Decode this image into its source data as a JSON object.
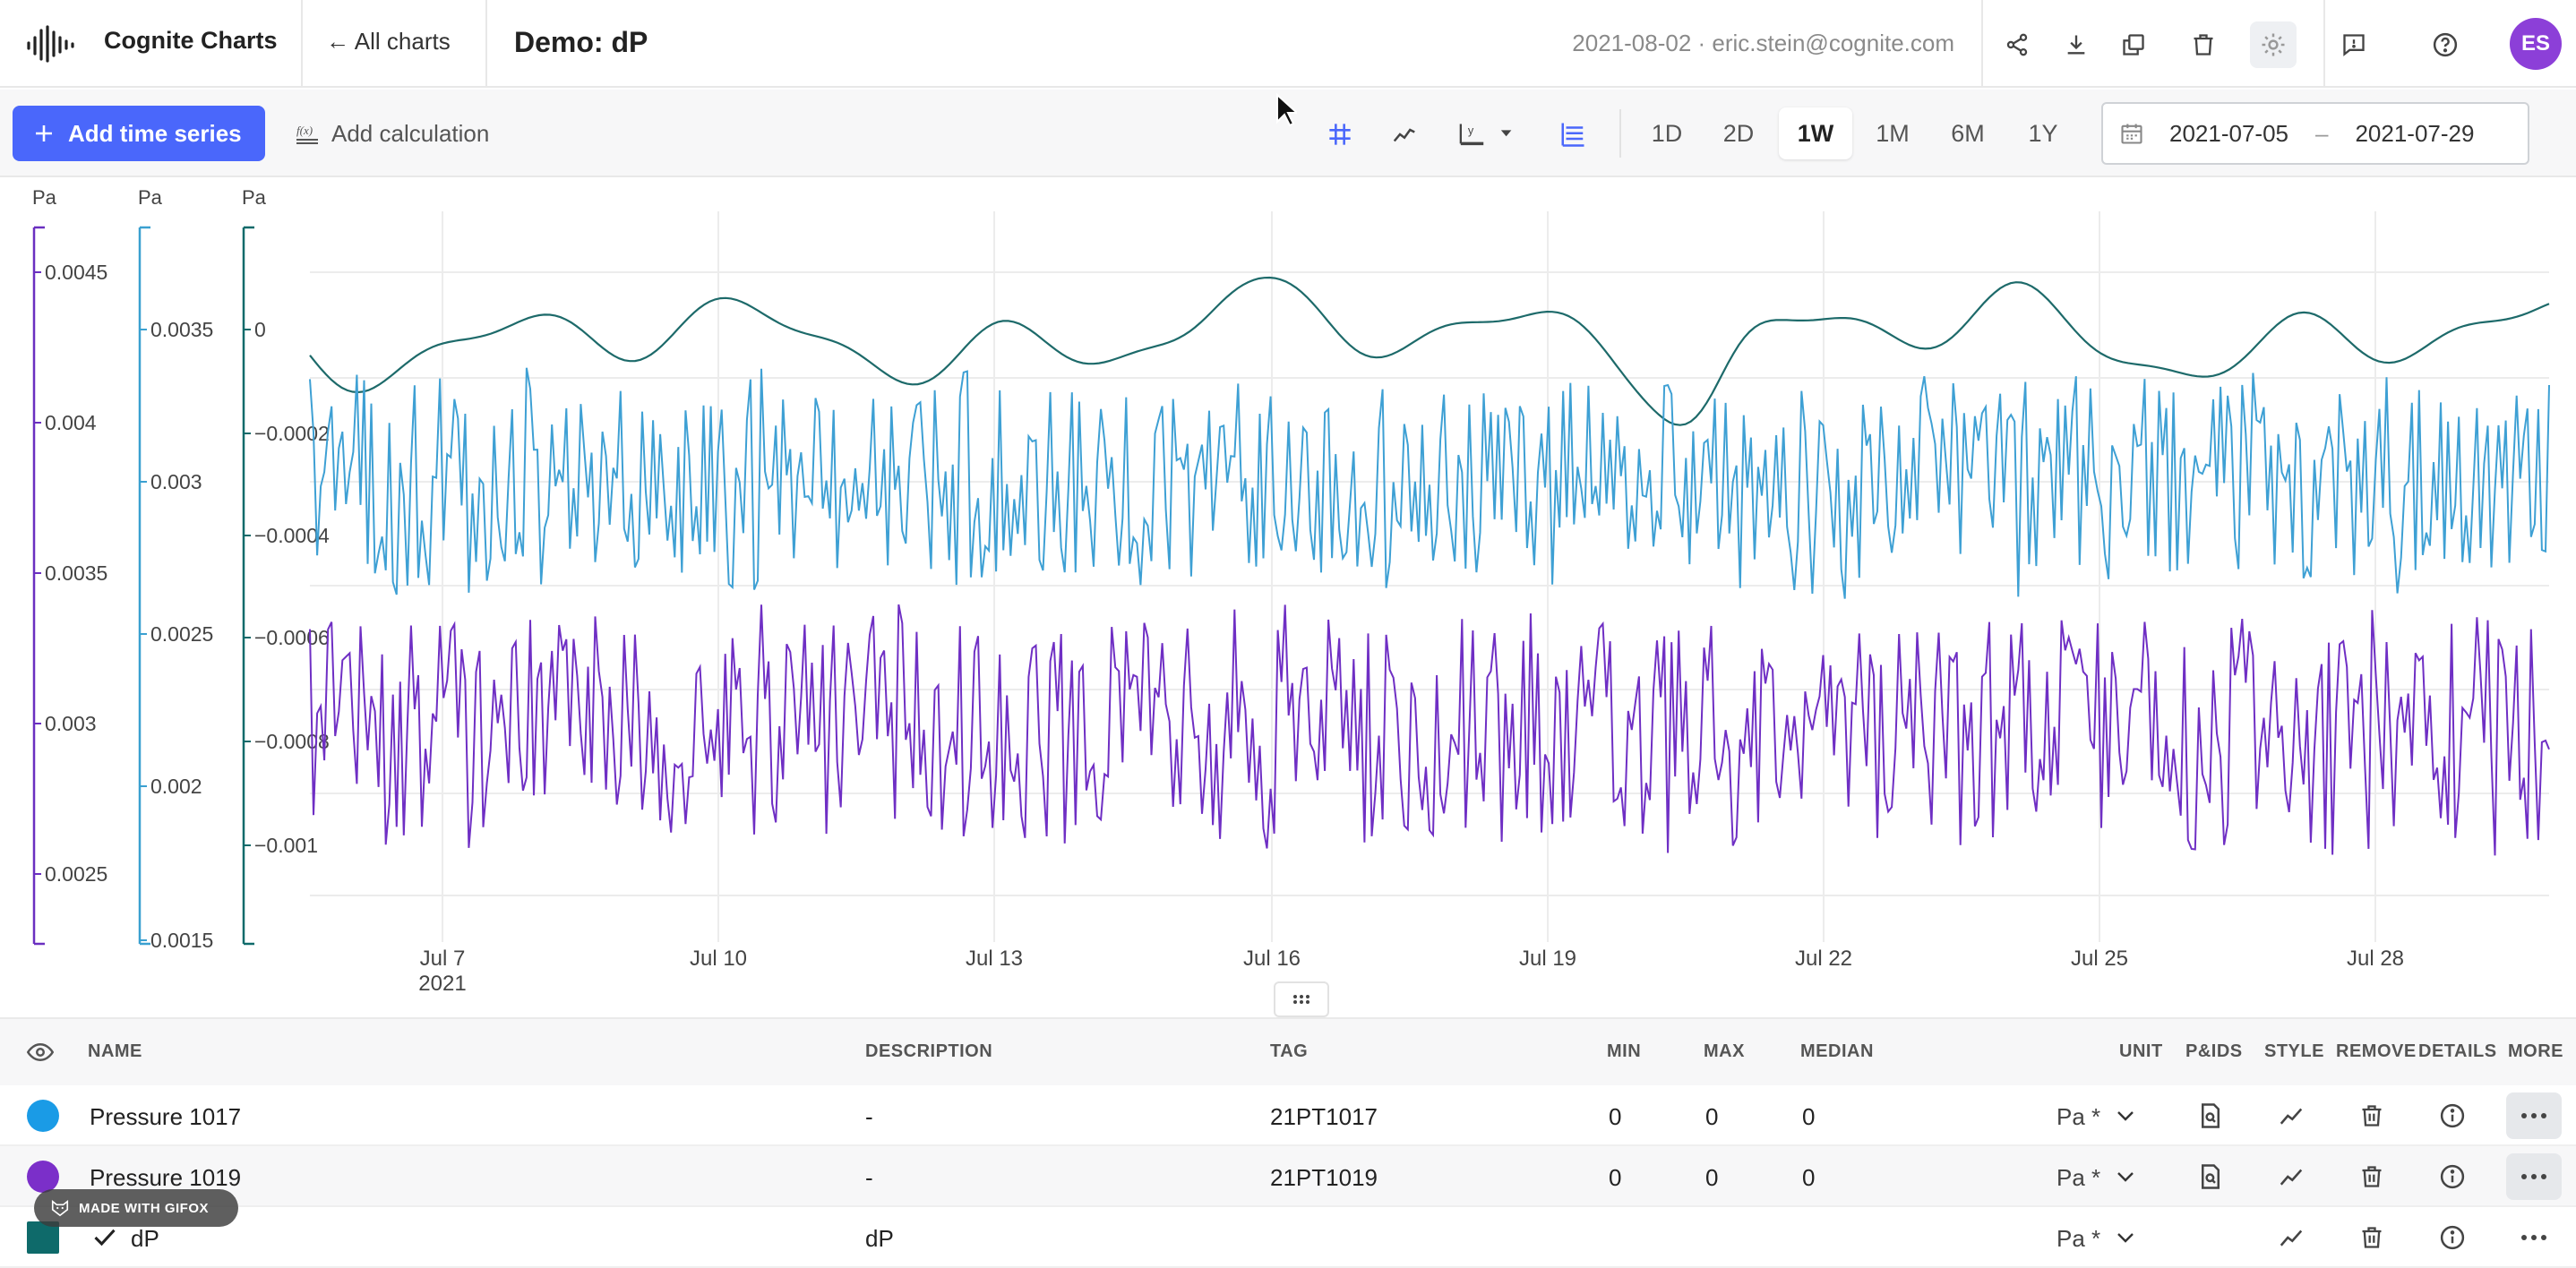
{
  "app": {
    "name": "Cognite Charts",
    "back_link": "← All charts",
    "chart_title": "Demo: dP",
    "user_info": "2021-08-02 · eric.stein@cognite.com",
    "avatar_initials": "ES"
  },
  "toolbar": {
    "add_time_series": "Add time series",
    "add_calculation": "Add calculation",
    "ranges": [
      "1D",
      "2D",
      "1W",
      "1M",
      "6M",
      "1Y"
    ],
    "active_range": "1W",
    "date_from": "2021-07-05",
    "date_sep": "–",
    "date_to": "2021-07-29"
  },
  "chart": {
    "x_ticks": [
      "Jul 7",
      "Jul 10",
      "Jul 13",
      "Jul 16",
      "Jul 19",
      "Jul 22",
      "Jul 25",
      "Jul 28"
    ],
    "x_year": "2021",
    "axes": [
      {
        "unit": "Pa",
        "color": "#6a2fc0",
        "ticks": [
          "0.0045",
          "0.004",
          "0.0035",
          "0.003",
          "0.0025"
        ]
      },
      {
        "unit": "Pa",
        "color": "#3aa0d0",
        "ticks": [
          "0.0035",
          "0.003",
          "0.0025",
          "0.002",
          "0.0015"
        ]
      },
      {
        "unit": "Pa",
        "color": "#0e6a6a",
        "ticks": [
          "0",
          "−0.0002",
          "−0.0004",
          "−0.0006",
          "−0.0008",
          "−0.001"
        ]
      }
    ]
  },
  "table": {
    "headers": {
      "name": "NAME",
      "description": "DESCRIPTION",
      "tag": "TAG",
      "min": "MIN",
      "max": "MAX",
      "median": "MEDIAN",
      "unit": "UNIT",
      "pids": "P&IDS",
      "style": "STYLE",
      "remove": "REMOVE",
      "details": "DETAILS",
      "more": "MORE"
    },
    "rows": [
      {
        "name": "Pressure 1017",
        "description": "-",
        "tag": "21PT1017",
        "min": "0",
        "max": "0",
        "median": "0",
        "unit": "Pa *",
        "color": "#1a9be6"
      },
      {
        "name": "Pressure 1019",
        "description": "-",
        "tag": "21PT1019",
        "min": "0",
        "max": "0",
        "median": "0",
        "unit": "Pa *",
        "color": "#7b2fc9"
      },
      {
        "name": "dP",
        "description": "dP",
        "tag": "",
        "min": "",
        "max": "",
        "median": "",
        "unit": "Pa *",
        "color": "#0e6a6a"
      }
    ]
  },
  "watermark": "MADE WITH GIFOX"
}
